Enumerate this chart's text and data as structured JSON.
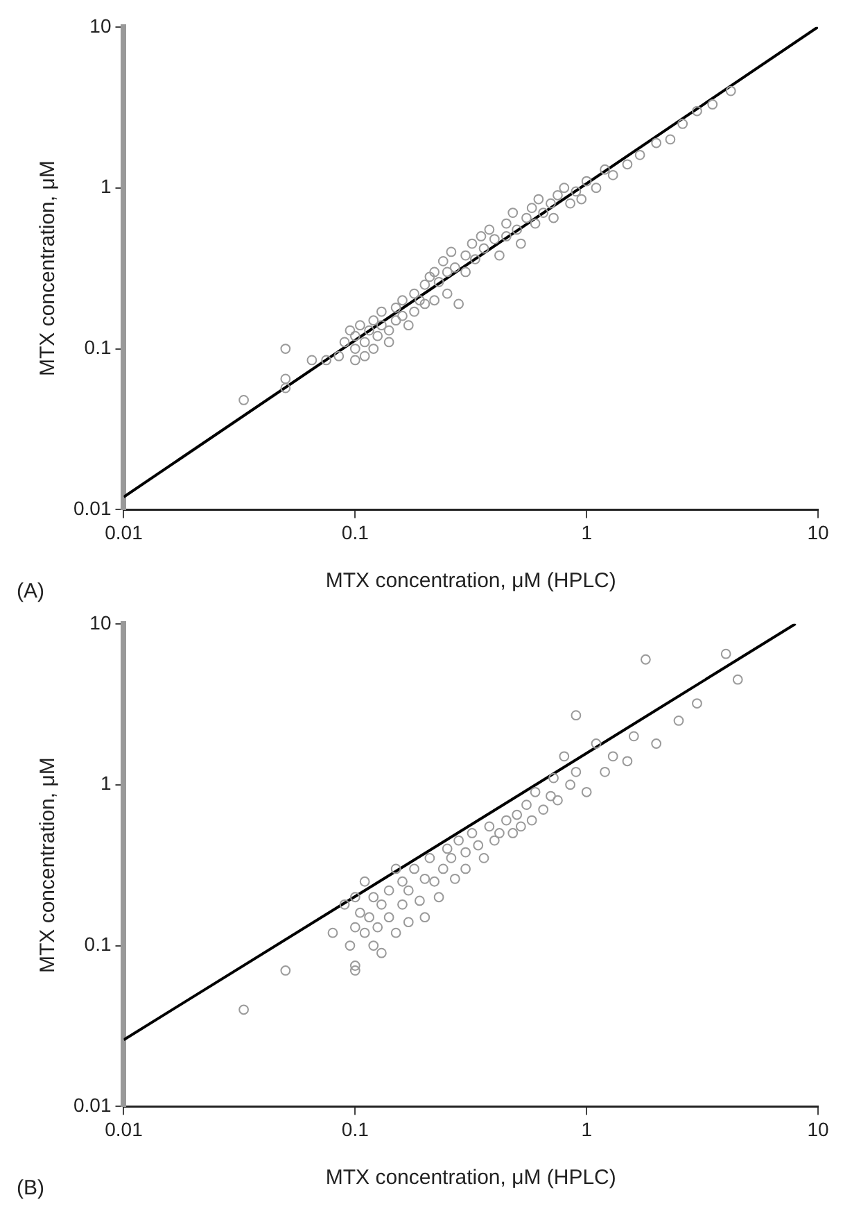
{
  "chart_data": [
    {
      "type": "scatter",
      "xlabel": "MTX concentration, μM (HPLC)",
      "ylabel": "MTX concentration, μM",
      "annotations": [
        "(A)"
      ],
      "log": "xy",
      "xlim": [
        0.01,
        10
      ],
      "ylim": [
        0.01,
        10
      ],
      "xticks": [
        0.01,
        0.1,
        1,
        10
      ],
      "yticks": [
        0.01,
        0.1,
        1,
        10
      ],
      "grid": false,
      "legend": false,
      "series": [
        {
          "marker": "circle",
          "color": "#9a9a9a",
          "x": [
            0.033,
            0.05,
            0.05,
            0.05,
            0.065,
            0.075,
            0.085,
            0.09,
            0.095,
            0.1,
            0.1,
            0.1,
            0.105,
            0.11,
            0.11,
            0.115,
            0.12,
            0.12,
            0.125,
            0.13,
            0.13,
            0.14,
            0.14,
            0.15,
            0.15,
            0.16,
            0.16,
            0.17,
            0.18,
            0.18,
            0.19,
            0.2,
            0.2,
            0.21,
            0.22,
            0.22,
            0.23,
            0.24,
            0.25,
            0.25,
            0.26,
            0.27,
            0.28,
            0.3,
            0.3,
            0.32,
            0.33,
            0.35,
            0.36,
            0.38,
            0.4,
            0.42,
            0.45,
            0.45,
            0.48,
            0.5,
            0.52,
            0.55,
            0.58,
            0.6,
            0.62,
            0.65,
            0.7,
            0.72,
            0.75,
            0.8,
            0.85,
            0.9,
            0.95,
            1.0,
            1.1,
            1.2,
            1.3,
            1.5,
            1.7,
            2.0,
            2.3,
            2.6,
            3.0,
            3.5,
            4.2
          ],
          "values": [
            0.048,
            0.1,
            0.065,
            0.057,
            0.085,
            0.085,
            0.09,
            0.11,
            0.13,
            0.1,
            0.12,
            0.085,
            0.14,
            0.11,
            0.09,
            0.13,
            0.15,
            0.1,
            0.12,
            0.17,
            0.14,
            0.13,
            0.11,
            0.18,
            0.15,
            0.2,
            0.16,
            0.14,
            0.22,
            0.17,
            0.2,
            0.25,
            0.19,
            0.28,
            0.3,
            0.2,
            0.26,
            0.35,
            0.3,
            0.22,
            0.4,
            0.32,
            0.19,
            0.38,
            0.3,
            0.45,
            0.36,
            0.5,
            0.42,
            0.55,
            0.48,
            0.38,
            0.6,
            0.5,
            0.7,
            0.55,
            0.45,
            0.65,
            0.75,
            0.6,
            0.85,
            0.7,
            0.8,
            0.65,
            0.9,
            1.0,
            0.8,
            0.95,
            0.85,
            1.1,
            1.0,
            1.3,
            1.2,
            1.4,
            1.6,
            1.9,
            2.0,
            2.5,
            3.0,
            3.3,
            4.0
          ]
        },
        {
          "type": "line",
          "marker": "none",
          "color": "#000000",
          "x": [
            0.01,
            10
          ],
          "values": [
            0.012,
            10
          ]
        }
      ]
    },
    {
      "type": "scatter",
      "xlabel": "MTX concentration, μM (HPLC)",
      "ylabel": "MTX concentration, μM",
      "annotations": [
        "(B)"
      ],
      "log": "xy",
      "xlim": [
        0.01,
        10
      ],
      "ylim": [
        0.01,
        10
      ],
      "xticks": [
        0.01,
        0.1,
        1,
        10
      ],
      "yticks": [
        0.01,
        0.1,
        1,
        10
      ],
      "grid": false,
      "legend": false,
      "series": [
        {
          "marker": "circle",
          "color": "#9a9a9a",
          "x": [
            0.033,
            0.05,
            0.08,
            0.09,
            0.095,
            0.1,
            0.1,
            0.1,
            0.1,
            0.105,
            0.11,
            0.11,
            0.115,
            0.12,
            0.12,
            0.125,
            0.13,
            0.13,
            0.14,
            0.14,
            0.15,
            0.15,
            0.16,
            0.16,
            0.17,
            0.17,
            0.18,
            0.19,
            0.2,
            0.2,
            0.21,
            0.22,
            0.23,
            0.24,
            0.25,
            0.26,
            0.27,
            0.28,
            0.3,
            0.3,
            0.32,
            0.34,
            0.36,
            0.38,
            0.4,
            0.42,
            0.45,
            0.48,
            0.5,
            0.52,
            0.55,
            0.58,
            0.6,
            0.65,
            0.7,
            0.72,
            0.75,
            0.8,
            0.85,
            0.9,
            0.9,
            1.0,
            1.1,
            1.2,
            1.3,
            1.5,
            1.6,
            1.8,
            2.0,
            2.5,
            3.0,
            4.0,
            4.5
          ],
          "values": [
            0.04,
            0.07,
            0.12,
            0.18,
            0.1,
            0.075,
            0.07,
            0.13,
            0.2,
            0.16,
            0.12,
            0.25,
            0.15,
            0.1,
            0.2,
            0.13,
            0.18,
            0.09,
            0.22,
            0.15,
            0.3,
            0.12,
            0.25,
            0.18,
            0.14,
            0.22,
            0.3,
            0.19,
            0.26,
            0.15,
            0.35,
            0.25,
            0.2,
            0.3,
            0.4,
            0.35,
            0.26,
            0.45,
            0.38,
            0.3,
            0.5,
            0.42,
            0.35,
            0.55,
            0.45,
            0.5,
            0.6,
            0.5,
            0.65,
            0.55,
            0.75,
            0.6,
            0.9,
            0.7,
            0.85,
            1.1,
            0.8,
            1.5,
            1.0,
            2.7,
            1.2,
            0.9,
            1.8,
            1.2,
            1.5,
            1.4,
            2.0,
            6.0,
            1.8,
            2.5,
            3.2,
            6.5,
            4.5
          ]
        },
        {
          "type": "line",
          "marker": "none",
          "color": "#000000",
          "x": [
            0.01,
            8
          ],
          "values": [
            0.026,
            10
          ]
        }
      ]
    }
  ]
}
